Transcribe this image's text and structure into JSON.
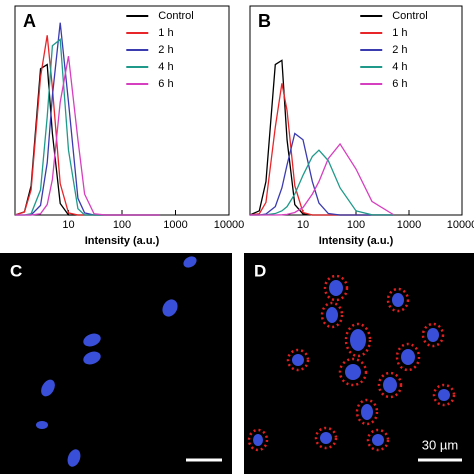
{
  "chart_data": [
    {
      "type": "line",
      "panel": "A",
      "xlabel": "Intensity (a.u.)",
      "xscale": "log",
      "xlim": [
        1,
        10000
      ],
      "xticks": [
        10,
        100,
        1000,
        10000
      ],
      "ylim": [
        0,
        100
      ],
      "legend": "upper right",
      "x": [
        1,
        1.5,
        2,
        3,
        4,
        5,
        7,
        10,
        15,
        20,
        30,
        50,
        100,
        200,
        500
      ],
      "series": [
        {
          "name": "Control",
          "color": "#000000",
          "values": [
            0,
            1.5,
            14,
            70,
            72,
            39,
            5.5,
            0,
            0,
            0,
            0,
            0,
            0,
            0,
            0
          ]
        },
        {
          "name": "1 h",
          "color": "#e8262a",
          "values": [
            0,
            1.4,
            12,
            66,
            86,
            61,
            15,
            1,
            0,
            0,
            0,
            0,
            0,
            0,
            0
          ]
        },
        {
          "name": "2 h",
          "color": "#3b3bb0",
          "values": [
            0,
            0,
            0,
            4.6,
            25,
            57,
            92,
            54,
            8,
            1,
            0,
            0,
            0,
            0,
            0
          ]
        },
        {
          "name": "4 h",
          "color": "#1f9a8a",
          "values": [
            0,
            0,
            0.6,
            12,
            47,
            81,
            84,
            31,
            3,
            0,
            0,
            0,
            0,
            0,
            0
          ]
        },
        {
          "name": "6 h",
          "color": "#d63fbf",
          "values": [
            0,
            0,
            0,
            0.6,
            5,
            17,
            54,
            76,
            36,
            10,
            0.6,
            0,
            0,
            0,
            0
          ]
        }
      ]
    },
    {
      "type": "line",
      "panel": "B",
      "xlabel": "Intensity (a.u.)",
      "xscale": "log",
      "xlim": [
        1,
        10000
      ],
      "xticks": [
        10,
        100,
        1000,
        10000
      ],
      "ylim": [
        0,
        100
      ],
      "legend": "upper right",
      "x": [
        1,
        1.5,
        2,
        3,
        4,
        5,
        7,
        10,
        15,
        20,
        30,
        50,
        100,
        200,
        500
      ],
      "series": [
        {
          "name": "Control",
          "color": "#000000",
          "values": [
            0,
            2,
            16,
            72,
            74,
            36,
            5,
            0.5,
            0,
            0,
            0,
            0,
            0,
            0,
            0
          ]
        },
        {
          "name": "1 h",
          "color": "#e8262a",
          "values": [
            0,
            0.6,
            6,
            42,
            63,
            50,
            14,
            1.2,
            0,
            0,
            0,
            0,
            0,
            0,
            0
          ]
        },
        {
          "name": "2 h",
          "color": "#3b3bb0",
          "values": [
            0,
            0,
            0.5,
            4,
            13,
            24,
            39,
            36,
            16,
            5.7,
            0.7,
            0,
            0,
            0,
            0
          ]
        },
        {
          "name": "4 h",
          "color": "#1f9a8a",
          "values": [
            0,
            0,
            0.1,
            0.7,
            2,
            4,
            10,
            19,
            28,
            31,
            26,
            13,
            2,
            0.1,
            0
          ]
        },
        {
          "name": "6 h",
          "color": "#d63fbf",
          "values": [
            0,
            0,
            0,
            0,
            0.1,
            0.3,
            1.2,
            3.6,
            10,
            16,
            27,
            34,
            22,
            6.5,
            0.3
          ]
        }
      ]
    }
  ],
  "images": [
    {
      "panel": "C"
    },
    {
      "panel": "D",
      "scale_bar": "30 µm"
    }
  ]
}
